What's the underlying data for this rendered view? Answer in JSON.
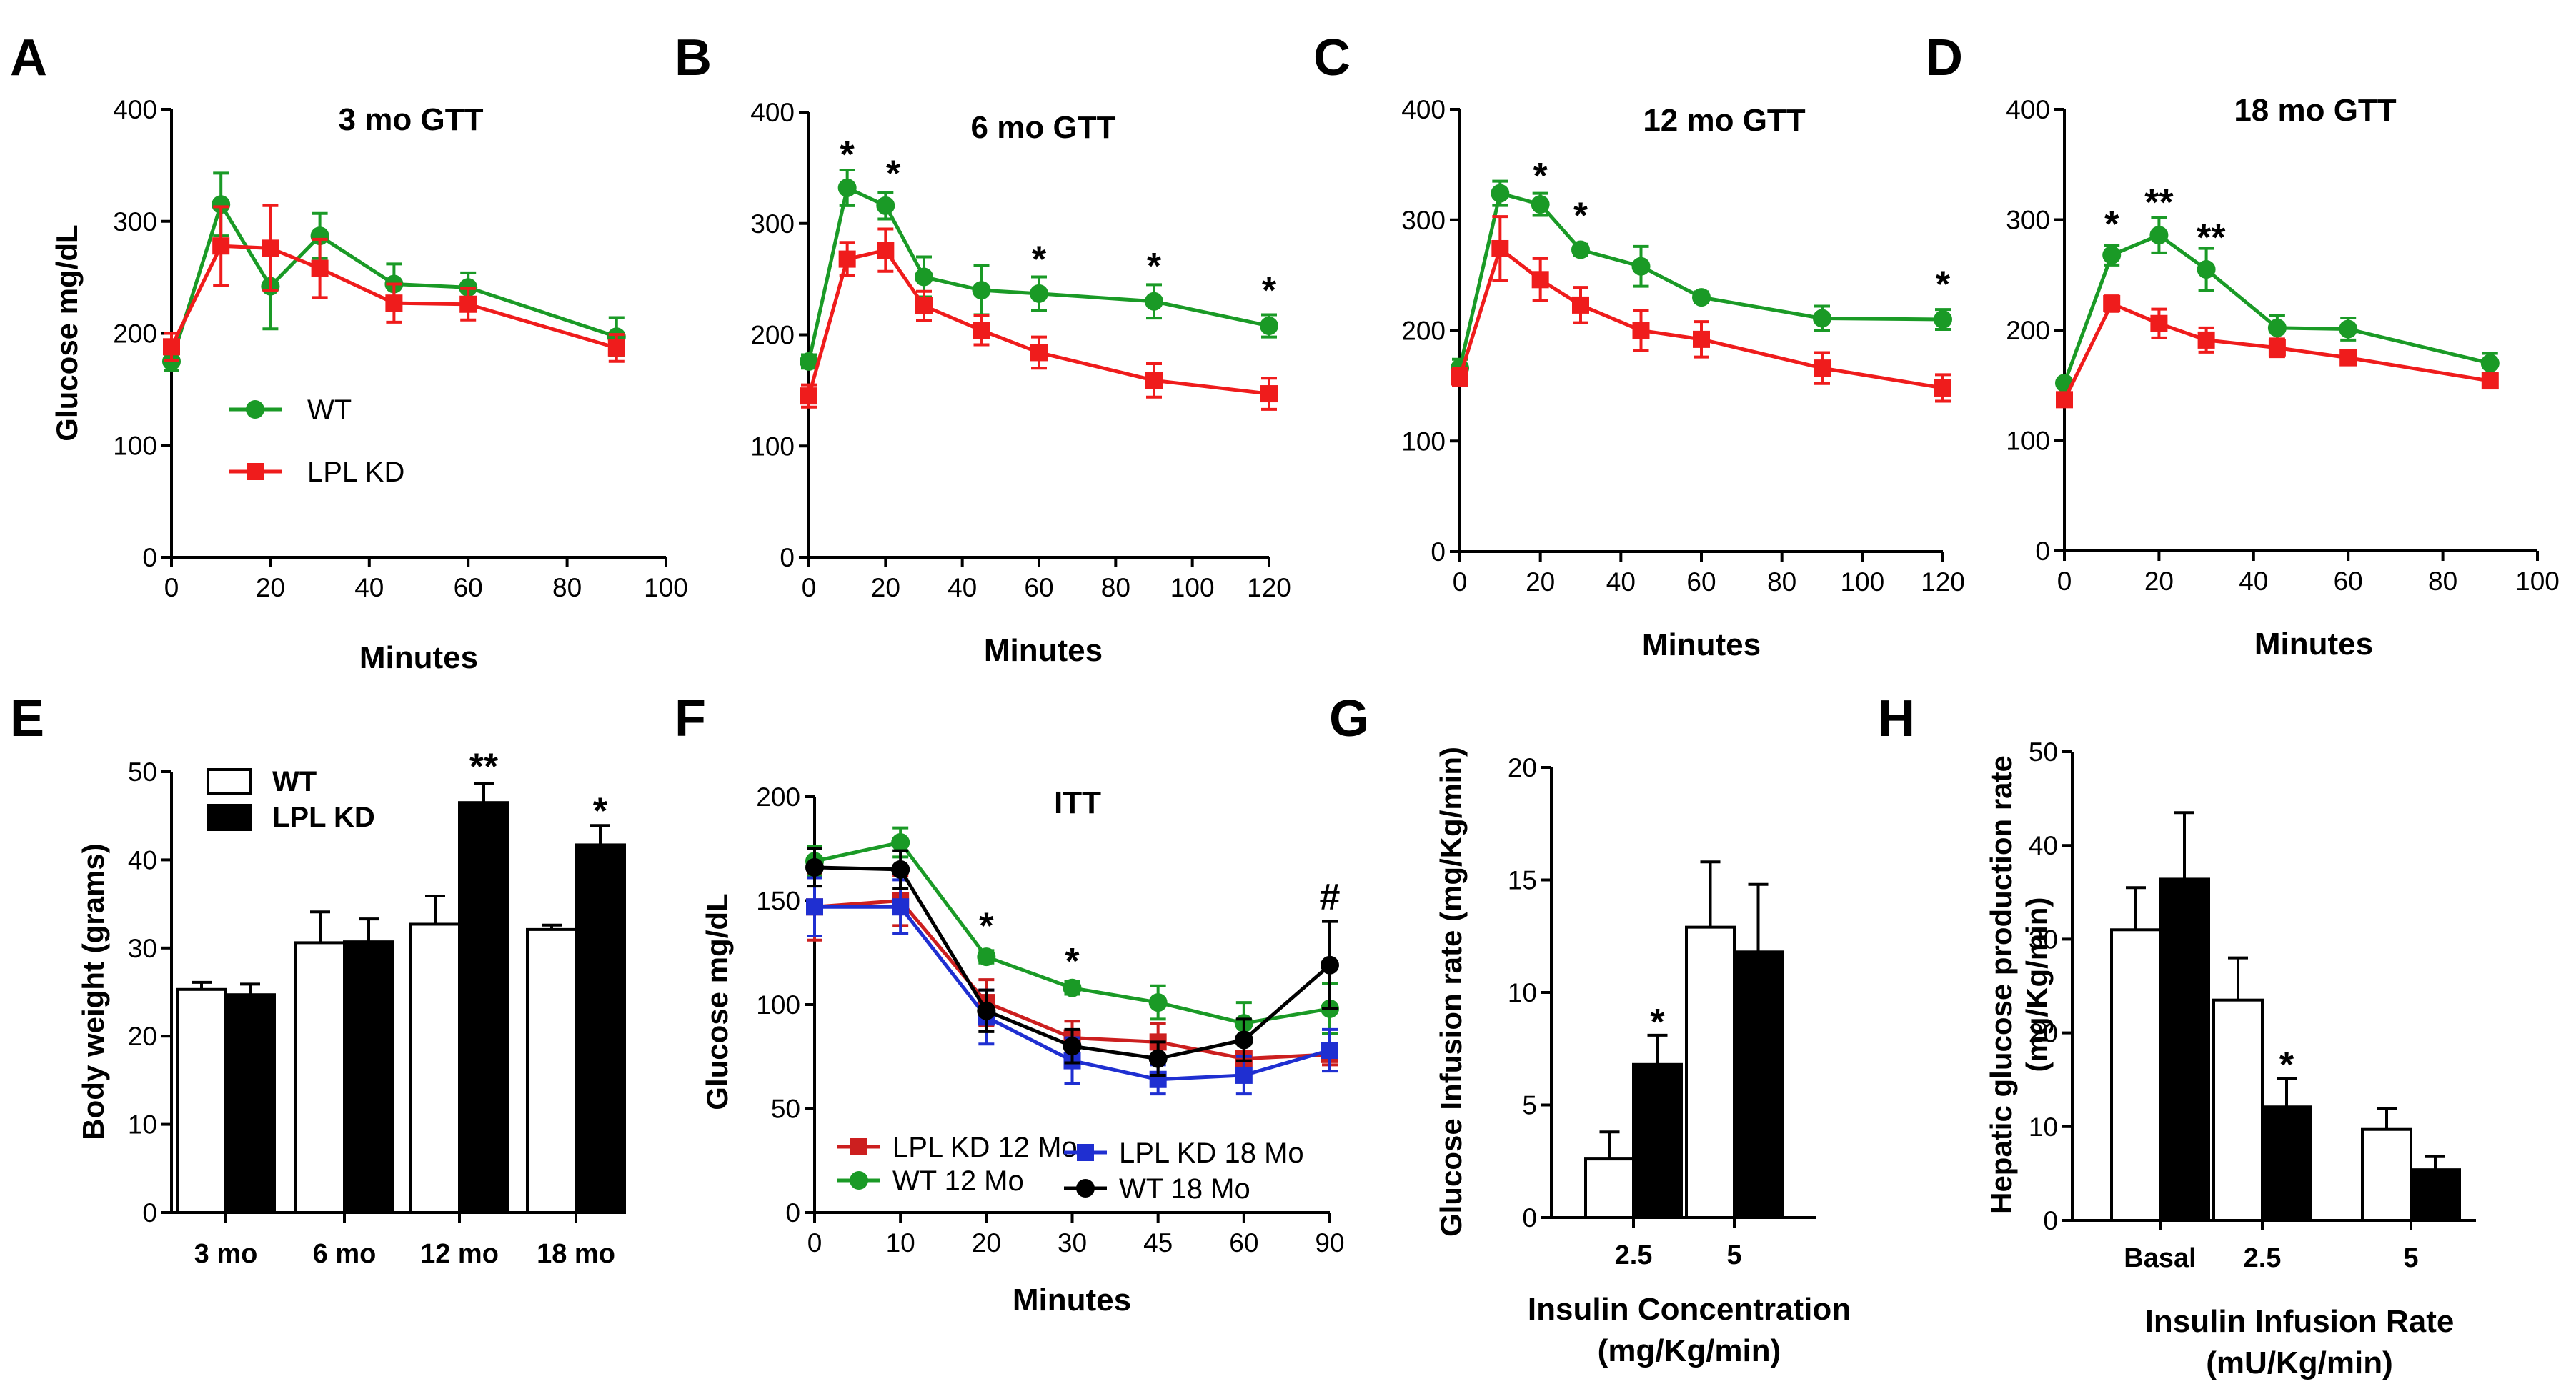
{
  "chart_data": [
    {
      "id": "A",
      "panel_label": "A",
      "type": "line",
      "title": "3 mo GTT",
      "xlabel": "Minutes",
      "ylabel": "Glucose mg/dL",
      "xlim": [
        0,
        100
      ],
      "ylim": [
        0,
        400
      ],
      "xticks": [
        0,
        20,
        40,
        60,
        80,
        100
      ],
      "yticks": [
        0,
        100,
        200,
        300,
        400
      ],
      "legend": {
        "position": "lower-left",
        "entries": [
          "WT",
          "LPL KD"
        ]
      },
      "series": [
        {
          "name": "WT",
          "color": "#1a9a26",
          "marker": "circle",
          "x": [
            0,
            10,
            20,
            30,
            45,
            60,
            90
          ],
          "y": [
            175,
            315,
            242,
            287,
            244,
            241,
            197
          ],
          "err": [
            8,
            28,
            38,
            20,
            18,
            13,
            17
          ]
        },
        {
          "name": "LPL KD",
          "color": "#ef1c1c",
          "marker": "square",
          "x": [
            0,
            10,
            20,
            30,
            45,
            60,
            90
          ],
          "y": [
            188,
            278,
            276,
            258,
            227,
            226,
            187
          ],
          "err": [
            12,
            35,
            38,
            26,
            17,
            14,
            12
          ]
        }
      ],
      "annotations": []
    },
    {
      "id": "B",
      "panel_label": "B",
      "type": "line",
      "title": "6 mo GTT",
      "xlabel": "Minutes",
      "ylabel": "",
      "xlim": [
        0,
        120
      ],
      "ylim": [
        0,
        400
      ],
      "xticks": [
        0,
        20,
        40,
        60,
        80,
        100,
        120
      ],
      "yticks": [
        0,
        100,
        200,
        300,
        400
      ],
      "series": [
        {
          "name": "WT",
          "color": "#1a9a26",
          "marker": "circle",
          "x": [
            0,
            10,
            20,
            30,
            45,
            60,
            90,
            120
          ],
          "y": [
            176,
            332,
            316,
            252,
            240,
            237,
            230,
            208
          ],
          "err": [
            6,
            16,
            12,
            18,
            22,
            15,
            15,
            10
          ]
        },
        {
          "name": "LPL KD",
          "color": "#ef1c1c",
          "marker": "square",
          "x": [
            0,
            10,
            20,
            30,
            45,
            60,
            90,
            120
          ],
          "y": [
            145,
            268,
            276,
            226,
            204,
            184,
            159,
            147
          ],
          "err": [
            10,
            15,
            19,
            13,
            13,
            14,
            15,
            14
          ]
        }
      ],
      "annotations": [
        {
          "text": "*",
          "x": 10,
          "y": 362
        },
        {
          "text": "*",
          "x": 22,
          "y": 345
        },
        {
          "text": "*",
          "x": 60,
          "y": 268
        },
        {
          "text": "*",
          "x": 90,
          "y": 262
        },
        {
          "text": "*",
          "x": 120,
          "y": 240
        }
      ]
    },
    {
      "id": "C",
      "panel_label": "C",
      "type": "line",
      "title": "12 mo GTT",
      "xlabel": "Minutes",
      "ylabel": "",
      "xlim": [
        0,
        120
      ],
      "ylim": [
        0,
        400
      ],
      "xticks": [
        0,
        20,
        40,
        60,
        80,
        100,
        120
      ],
      "yticks": [
        0,
        100,
        200,
        300,
        400
      ],
      "series": [
        {
          "name": "WT",
          "color": "#1a9a26",
          "marker": "circle",
          "x": [
            0,
            10,
            20,
            30,
            45,
            60,
            90,
            120
          ],
          "y": [
            166,
            324,
            314,
            273,
            258,
            230,
            211,
            210
          ],
          "err": [
            8,
            11,
            10,
            5,
            18,
            5,
            11,
            9
          ]
        },
        {
          "name": "LPL KD",
          "color": "#ef1c1c",
          "marker": "square",
          "x": [
            0,
            10,
            20,
            30,
            45,
            60,
            90,
            120
          ],
          "y": [
            158,
            274,
            246,
            223,
            200,
            192,
            166,
            148
          ],
          "err": [
            8,
            29,
            19,
            16,
            18,
            16,
            14,
            12
          ]
        }
      ],
      "annotations": [
        {
          "text": "*",
          "x": 20,
          "y": 340
        },
        {
          "text": "*",
          "x": 30,
          "y": 304
        },
        {
          "text": "*",
          "x": 120,
          "y": 242
        }
      ]
    },
    {
      "id": "D",
      "panel_label": "D",
      "type": "line",
      "title": "18 mo GTT",
      "xlabel": "Minutes",
      "ylabel": "",
      "xlim": [
        0,
        100
      ],
      "ylim": [
        0,
        400
      ],
      "xticks": [
        0,
        20,
        40,
        60,
        80,
        100
      ],
      "yticks": [
        0,
        100,
        200,
        300,
        400
      ],
      "series": [
        {
          "name": "WT",
          "color": "#1a9a26",
          "marker": "circle",
          "x": [
            0,
            10,
            20,
            30,
            45,
            60,
            90
          ],
          "y": [
            152,
            268,
            286,
            255,
            202,
            201,
            170
          ],
          "err": [
            4,
            9,
            16,
            19,
            11,
            10,
            9
          ]
        },
        {
          "name": "LPL KD",
          "color": "#ef1c1c",
          "marker": "square",
          "x": [
            0,
            10,
            20,
            30,
            45,
            60,
            90
          ],
          "y": [
            137,
            224,
            206,
            191,
            184,
            175,
            154
          ],
          "err": [
            5,
            7,
            13,
            11,
            8,
            6,
            5
          ]
        }
      ],
      "annotations": [
        {
          "text": "*",
          "x": 10,
          "y": 296
        },
        {
          "text": "**",
          "x": 20,
          "y": 316
        },
        {
          "text": "**",
          "x": 31,
          "y": 284
        }
      ]
    },
    {
      "id": "E",
      "panel_label": "E",
      "type": "bar",
      "title": "",
      "xlabel": "",
      "ylabel": "Body weight (grams)",
      "categories": [
        "3 mo",
        "6 mo",
        "12 mo",
        "18 mo"
      ],
      "ylim": [
        0,
        50
      ],
      "yticks": [
        0,
        10,
        20,
        30,
        40,
        50
      ],
      "legend": {
        "position": "top-left",
        "entries": [
          "WT",
          "LPL KD"
        ]
      },
      "series": [
        {
          "name": "WT",
          "fill": "#ffffff",
          "values": [
            25.3,
            30.6,
            32.7,
            32.1
          ],
          "err": [
            0.8,
            3.5,
            3.2,
            0.5
          ]
        },
        {
          "name": "LPL KD",
          "fill": "#000000",
          "values": [
            24.7,
            30.7,
            46.5,
            41.7
          ],
          "err": [
            1.2,
            2.6,
            2.2,
            2.2
          ]
        }
      ],
      "annotations": [
        {
          "text": "**",
          "category": 2,
          "series": 1,
          "y": 50.6
        },
        {
          "text": "*",
          "category": 3,
          "series": 1,
          "y": 45.6
        }
      ]
    },
    {
      "id": "F",
      "panel_label": "F",
      "type": "line",
      "title": "ITT",
      "xlabel": "Minutes",
      "ylabel": "Glucose mg/dL",
      "categorical_x": true,
      "x_categories": [
        "0",
        "10",
        "20",
        "30",
        "45",
        "60",
        "90"
      ],
      "ylim": [
        0,
        200
      ],
      "yticks": [
        0,
        50,
        100,
        150,
        200
      ],
      "legend": {
        "position": "bottom-left",
        "entries": [
          "LPL KD 12 Mo",
          "WT 12 Mo",
          "LPL KD 18 Mo",
          "WT 18 Mo"
        ]
      },
      "series": [
        {
          "name": "LPL KD 12 Mo",
          "color": "#cc1f1f",
          "marker": "square",
          "y": [
            147,
            150,
            101,
            84,
            82,
            74,
            76
          ],
          "err": [
            16,
            12,
            11,
            8,
            9,
            8,
            5
          ]
        },
        {
          "name": "WT 12 Mo",
          "color": "#1a9a26",
          "marker": "circle",
          "y": [
            169,
            178,
            123,
            108,
            101,
            91,
            98
          ],
          "err": [
            7,
            7,
            3,
            3,
            8,
            10,
            12
          ]
        },
        {
          "name": "LPL KD 18 Mo",
          "color": "#1f2fd1",
          "marker": "square",
          "y": [
            147,
            147,
            94,
            73,
            64,
            66,
            78
          ],
          "err": [
            14,
            13,
            13,
            11,
            7,
            9,
            10
          ]
        },
        {
          "name": "WT 18 Mo",
          "color": "#000000",
          "marker": "circle",
          "y": [
            166,
            165,
            97,
            80,
            74,
            83,
            119
          ],
          "err": [
            9,
            9,
            10,
            8,
            8,
            10,
            21
          ]
        }
      ],
      "annotations": [
        {
          "text": "*",
          "xi": 2,
          "y": 138
        },
        {
          "text": "*",
          "xi": 3,
          "y": 121
        },
        {
          "text": "#",
          "xi": 6,
          "y": 152
        }
      ]
    },
    {
      "id": "G",
      "panel_label": "G",
      "type": "bar",
      "title": "",
      "xlabel": "Insulin Concentration (mg/Kg/min)",
      "xlabel_lines": [
        "Insulin Concentration",
        "(mg/Kg/min)"
      ],
      "ylabel": "Glucose Infusion rate (mg/Kg/min)",
      "categories": [
        "2.5",
        "5"
      ],
      "ylim": [
        0,
        20
      ],
      "yticks": [
        0,
        5,
        10,
        15,
        20
      ],
      "series": [
        {
          "name": "WT",
          "fill": "#ffffff",
          "values": [
            2.6,
            12.9
          ],
          "err": [
            1.2,
            2.9
          ]
        },
        {
          "name": "LPL KD",
          "fill": "#000000",
          "values": [
            6.8,
            11.8
          ],
          "err": [
            1.3,
            3.0
          ]
        }
      ],
      "annotations": [
        {
          "text": "*",
          "category": 0,
          "series": 1,
          "y": 8.7
        }
      ]
    },
    {
      "id": "H",
      "panel_label": "H",
      "type": "bar",
      "title": "",
      "xlabel": "Insulin Infusion Rate (mU/Kg/min)",
      "xlabel_lines": [
        "Insulin Infusion Rate",
        "(mU/Kg/min)"
      ],
      "ylabel": "Hepatic glucose production rate (mg/Kg/min)",
      "ylabel_lines": [
        "Hepatic glucose production rate",
        "(mg/Kg/min)"
      ],
      "categories": [
        "Basal",
        "2.5",
        "5"
      ],
      "ylim": [
        0,
        50
      ],
      "yticks": [
        0,
        10,
        20,
        30,
        40,
        50
      ],
      "series": [
        {
          "name": "WT",
          "fill": "#ffffff",
          "values": [
            31,
            23.5,
            9.7
          ],
          "err": [
            4.5,
            4.5,
            2.2
          ]
        },
        {
          "name": "LPL KD",
          "fill": "#000000",
          "values": [
            36.4,
            12.1,
            5.4
          ],
          "err": [
            7.1,
            3.0,
            1.4
          ]
        }
      ],
      "annotations": [
        {
          "text": "*",
          "category": 1,
          "series": 1,
          "y": 16.6
        }
      ]
    }
  ]
}
